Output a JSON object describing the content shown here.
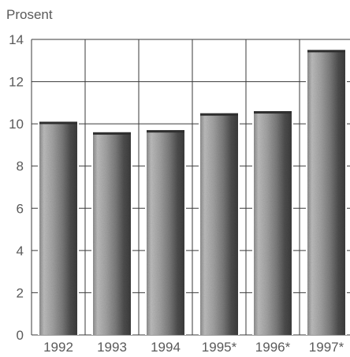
{
  "chart_data": {
    "type": "bar",
    "ylabel": "Prosent",
    "categories": [
      "1992",
      "1993",
      "1994",
      "1995*",
      "1996*",
      "1997*"
    ],
    "values": [
      10.1,
      9.6,
      9.7,
      10.5,
      10.6,
      13.5
    ],
    "ylim": [
      0,
      14
    ],
    "yticks": [
      0,
      2,
      4,
      6,
      8,
      10,
      12,
      14
    ],
    "grid": true,
    "bar_style": "grey-textured-cylinder"
  }
}
